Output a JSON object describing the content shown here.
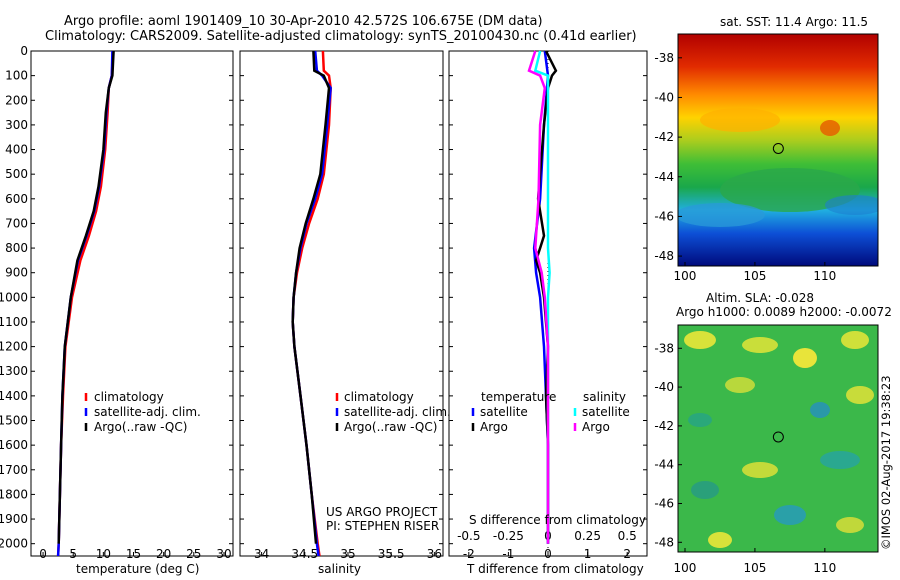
{
  "header": {
    "line1": "Argo profile: aoml 1901409_10 30-Apr-2010 42.572S 106.675E (DM data)",
    "line2": "Climatology: CARS2009. Satellite-adjusted climatology: synTS_20100430.nc (0.41d earlier)"
  },
  "depth_ticks": [
    "0",
    "100",
    "200",
    "300",
    "400",
    "500",
    "600",
    "700",
    "800",
    "900",
    "1000",
    "1100",
    "1200",
    "1300",
    "1400",
    "1500",
    "1600",
    "1700",
    "1800",
    "1900",
    "2000"
  ],
  "colors": {
    "climatology": "#ff0000",
    "satellite": "#0000ff",
    "argo": "#000000",
    "sal_satellite": "#00ffff",
    "sal_argo": "#ff00ff"
  },
  "chart_data": [
    {
      "type": "line",
      "title": "",
      "xlabel": "temperature (deg C)",
      "ylabel": "",
      "xlim": [
        -2,
        31.5
      ],
      "ylim": [
        2050,
        0
      ],
      "xticks": [
        "0",
        "5",
        "10",
        "15",
        "20",
        "25",
        "30"
      ],
      "legend": [
        "climatology",
        "satellite-adj. clim.",
        "Argo(..raw -QC)"
      ],
      "series": [
        {
          "name": "climatology",
          "depth": [
            0,
            100,
            150,
            250,
            400,
            550,
            650,
            750,
            850,
            1000,
            1200,
            1400,
            1600,
            1800,
            2000,
            2050
          ],
          "values": [
            11.6,
            11.4,
            10.9,
            10.7,
            10.3,
            9.6,
            8.8,
            7.6,
            6.2,
            4.8,
            3.7,
            3.3,
            3.0,
            2.8,
            2.6,
            2.5
          ]
        },
        {
          "name": "satellite-adj. clim.",
          "depth": [
            0,
            100,
            150,
            250,
            400,
            550,
            650,
            750,
            850,
            1000,
            1200,
            1400,
            1600,
            1800,
            2000,
            2050
          ],
          "values": [
            11.5,
            11.4,
            10.9,
            10.5,
            10.1,
            9.3,
            8.5,
            7.2,
            5.8,
            4.6,
            3.6,
            3.2,
            3.0,
            2.8,
            2.6,
            2.5
          ]
        },
        {
          "name": "Argo(..raw -QC)",
          "depth": [
            0,
            100,
            150,
            250,
            400,
            550,
            650,
            750,
            850,
            1000,
            1200,
            1400,
            1600,
            1800,
            2000
          ],
          "values": [
            11.7,
            11.5,
            10.9,
            10.4,
            10.0,
            9.2,
            8.4,
            7.1,
            5.7,
            4.6,
            3.6,
            3.2,
            3.0,
            2.8,
            2.6
          ]
        }
      ]
    },
    {
      "type": "line",
      "title": "",
      "xlabel": "salinity",
      "ylabel": "",
      "xlim": [
        33.75,
        36.1
      ],
      "ylim": [
        2050,
        0
      ],
      "xticks": [
        "34",
        "34.5",
        "35",
        "35.5",
        "36"
      ],
      "legend": [
        "climatology",
        "satellite-adj. clim.",
        "Argo(..raw -QC)"
      ],
      "annotations": [
        "US ARGO PROJECT",
        "PI: STEPHEN RISER"
      ],
      "series": [
        {
          "name": "climatology",
          "depth": [
            0,
            80,
            100,
            150,
            300,
            500,
            600,
            700,
            800,
            900,
            1000,
            1100,
            1200,
            1400,
            1600,
            1800,
            2000,
            2050
          ],
          "values": [
            34.71,
            34.72,
            34.78,
            34.8,
            34.78,
            34.72,
            34.65,
            34.55,
            34.47,
            34.41,
            34.37,
            34.36,
            34.38,
            34.45,
            34.52,
            34.58,
            34.65,
            34.67
          ]
        },
        {
          "name": "satellite-adj. clim.",
          "depth": [
            0,
            80,
            100,
            150,
            300,
            500,
            600,
            700,
            800,
            900,
            1000,
            1100,
            1200,
            1400,
            1600,
            1800,
            2000,
            2050
          ],
          "values": [
            34.62,
            34.64,
            34.7,
            34.8,
            34.76,
            34.7,
            34.62,
            34.52,
            34.45,
            34.4,
            34.37,
            34.36,
            34.38,
            34.45,
            34.52,
            34.58,
            34.64,
            34.66
          ]
        },
        {
          "name": "Argo(..raw -QC)",
          "depth": [
            0,
            80,
            100,
            150,
            300,
            500,
            600,
            700,
            800,
            900,
            1000,
            1100,
            1200,
            1400,
            1600,
            1800,
            2000
          ],
          "values": [
            34.6,
            34.61,
            34.72,
            34.78,
            34.74,
            34.68,
            34.6,
            34.51,
            34.44,
            34.4,
            34.37,
            34.36,
            34.38,
            34.45,
            34.52,
            34.58,
            34.63
          ]
        }
      ]
    },
    {
      "type": "line",
      "title": "",
      "xlabel": "T difference from climatology",
      "xlabel_top": "S difference from climatology",
      "ylabel": "",
      "xlim": [
        -2.5,
        2.5
      ],
      "ylim": [
        2050,
        0
      ],
      "xticks": [
        "-2",
        "-1",
        "0",
        "1",
        "2"
      ],
      "xticks_top": [
        "-0.5",
        "-0.25",
        "0",
        "0.25",
        "0.5"
      ],
      "legend_temperature_title": "temperature",
      "legend_salinity_title": "salinity",
      "legend": [
        "satellite",
        "Argo",
        "satellite",
        "Argo"
      ],
      "series": [
        {
          "name": "temperature satellite",
          "depth": [
            0,
            100,
            300,
            600,
            800,
            900,
            1000,
            1200,
            1400,
            1600,
            1800,
            2000
          ],
          "values": [
            -0.08,
            0.0,
            -0.1,
            -0.2,
            -0.35,
            -0.3,
            -0.2,
            -0.1,
            -0.05,
            0.0,
            0.0,
            0.0
          ]
        },
        {
          "name": "temperature Argo",
          "depth": [
            0,
            80,
            100,
            150,
            300,
            600,
            750,
            800,
            850,
            900,
            1000,
            1200,
            1400,
            1600,
            1800,
            2000
          ],
          "values": [
            -0.05,
            0.2,
            0.1,
            0.0,
            -0.1,
            -0.25,
            -0.1,
            -0.2,
            -0.3,
            -0.2,
            -0.1,
            0.0,
            -0.05,
            0.0,
            0.0,
            0.0
          ]
        },
        {
          "name": "salinity satellite",
          "depth": [
            0,
            80,
            100,
            200,
            400,
            600,
            800,
            900,
            1000,
            1200,
            1400,
            1600,
            1800,
            2000
          ],
          "values": [
            -0.05,
            -0.08,
            0.0,
            0.0,
            0.0,
            0.0,
            0.0,
            0.01,
            0.0,
            0.0,
            0.0,
            0.0,
            0.0,
            0.0
          ]
        },
        {
          "name": "salinity Argo",
          "depth": [
            0,
            80,
            100,
            150,
            300,
            600,
            800,
            900,
            1000,
            1200,
            1400,
            1600,
            1800,
            2000
          ],
          "values": [
            -0.08,
            -0.12,
            -0.05,
            -0.02,
            -0.05,
            -0.06,
            -0.08,
            -0.04,
            -0.02,
            0.0,
            0.0,
            0.0,
            0.0,
            0.0
          ]
        }
      ]
    },
    {
      "type": "heatmap",
      "title": "sat. SST: 11.4  Argo: 11.5",
      "xticks": [
        "100",
        "105",
        "110"
      ],
      "yticks": [
        "-38",
        "-40",
        "-42",
        "-44",
        "-46",
        "-48"
      ],
      "xlim": [
        99.5,
        113.8
      ],
      "ylim": [
        -48.5,
        -36.8
      ],
      "marker": {
        "lon": 106.675,
        "lat": -42.572
      }
    },
    {
      "type": "heatmap",
      "title": "Altim. SLA: -0.028",
      "subtitle": "Argo h1000: 0.0089 h2000: -0.0072",
      "xticks": [
        "100",
        "105",
        "110"
      ],
      "yticks": [
        "-38",
        "-40",
        "-42",
        "-44",
        "-46",
        "-48"
      ],
      "xlim": [
        99.5,
        113.8
      ],
      "ylim": [
        -48.5,
        -36.8
      ],
      "marker": {
        "lon": 106.675,
        "lat": -42.572
      }
    }
  ],
  "credit": "©IMOS 02-Aug-2017 19:38:23"
}
